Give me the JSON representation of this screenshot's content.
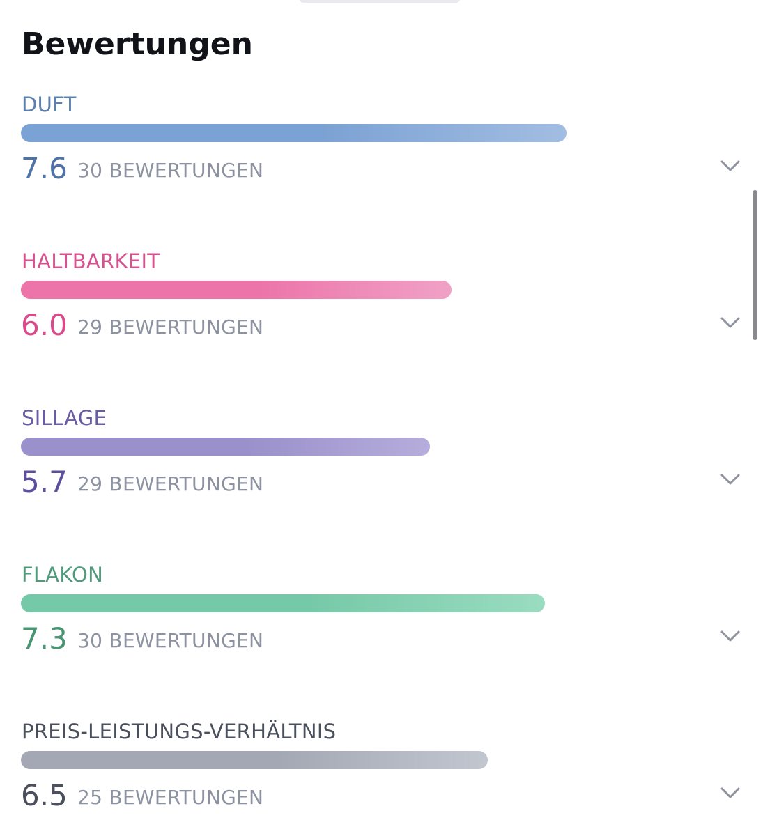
{
  "page": {
    "title": "Bewertungen"
  },
  "ratings": [
    {
      "label": "DUFT",
      "value": "7.6",
      "count": "30 BEWERTUNGEN",
      "fraction": 0.76,
      "label_color": "#5b7fae",
      "value_color": "#4f73a6",
      "bar_color_start": "#7ba2d4",
      "bar_color_end": "#a2bde2",
      "icon": "chevron-down-icon"
    },
    {
      "label": "HALTBARKEIT",
      "value": "6.0",
      "count": "29 BEWERTUNGEN",
      "fraction": 0.6,
      "label_color": "#d6528e",
      "value_color": "#d94a8a",
      "bar_color_start": "#ec74a8",
      "bar_color_end": "#f1a1c6",
      "icon": "chevron-down-icon"
    },
    {
      "label": "SILLAGE",
      "value": "5.7",
      "count": "29 BEWERTUNGEN",
      "fraction": 0.57,
      "label_color": "#6a5ca4",
      "value_color": "#5d4f9c",
      "bar_color_start": "#9a90cb",
      "bar_color_end": "#b6addc",
      "icon": "chevron-down-icon"
    },
    {
      "label": "FLAKON",
      "value": "7.3",
      "count": "30 BEWERTUNGEN",
      "fraction": 0.73,
      "label_color": "#4f9a7a",
      "value_color": "#4a9574",
      "bar_color_start": "#76c9a8",
      "bar_color_end": "#9adcc0",
      "icon": "chevron-down-icon"
    },
    {
      "label": "PREIS-LEISTUNGS-VERHÄLTNIS",
      "value": "6.5",
      "count": "25 BEWERTUNGEN",
      "fraction": 0.65,
      "label_color": "#4a4f5c",
      "value_color": "#4b505c",
      "bar_color_start": "#a3a8b4",
      "bar_color_end": "#c2c6cf",
      "icon": "chevron-down-icon"
    }
  ]
}
